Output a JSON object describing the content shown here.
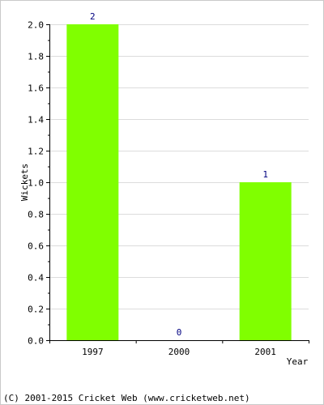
{
  "chart_data": {
    "type": "bar",
    "categories": [
      "1997",
      "2000",
      "2001"
    ],
    "values": [
      2,
      0,
      1
    ],
    "data_labels": [
      "2",
      "0",
      "1"
    ],
    "title": "",
    "xlabel": "Year",
    "ylabel": "Wickets",
    "ylim": [
      0,
      2.0
    ],
    "yticks": [
      "0.0",
      "0.2",
      "0.4",
      "0.6",
      "0.8",
      "1.0",
      "1.2",
      "1.4",
      "1.6",
      "1.8",
      "2.0"
    ],
    "grid": true,
    "legend": "none",
    "colors": {
      "bar": "#80ff00",
      "data_label": "#000080",
      "grid": "#dcdcdc",
      "axis": "#000000"
    }
  },
  "footer": {
    "copyright": "(C) 2001-2015 Cricket Web (www.cricketweb.net)"
  }
}
